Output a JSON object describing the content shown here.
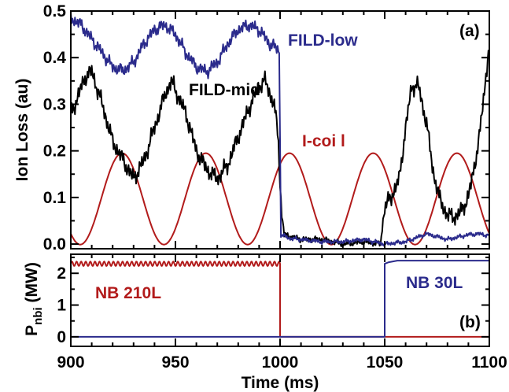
{
  "chart_data": [
    {
      "panel_label": "(a)",
      "type": "line",
      "ylabel": "Ion Loss (au)",
      "xlim": [
        900,
        1100
      ],
      "ylim": [
        -0.01,
        0.5
      ],
      "x_ticks": [
        "900",
        "950",
        "1000",
        "1050",
        "1100"
      ],
      "y_ticks": [
        "0.0",
        "0.1",
        "0.2",
        "0.3",
        "0.4",
        "0.5"
      ],
      "series": [
        {
          "name": "FILD-low",
          "color": "#2b2b8c",
          "x": [
            900,
            905,
            910,
            915,
            920,
            925,
            930,
            935,
            940,
            945,
            950,
            955,
            960,
            965,
            970,
            975,
            980,
            985,
            990,
            995,
            999.8,
            1000.2,
            1005,
            1010,
            1020,
            1030,
            1040,
            1050,
            1060,
            1070,
            1080,
            1090,
            1095,
            1100
          ],
          "y": [
            0.485,
            0.47,
            0.44,
            0.41,
            0.38,
            0.372,
            0.39,
            0.43,
            0.46,
            0.47,
            0.45,
            0.41,
            0.38,
            0.37,
            0.39,
            0.43,
            0.46,
            0.47,
            0.46,
            0.43,
            0.415,
            0.02,
            0.012,
            0.01,
            0.005,
            0.005,
            0.01,
            0.0,
            0.005,
            0.022,
            0.01,
            0.02,
            0.022,
            0.018
          ]
        },
        {
          "name": "FILD-mid",
          "color": "#000000",
          "x": [
            900,
            902,
            907,
            910,
            915,
            920,
            925,
            930,
            935,
            940,
            945,
            948,
            955,
            960,
            965,
            970,
            975,
            980,
            985,
            990,
            993,
            997,
            999,
            1000.5,
            1002,
            1010,
            1020,
            1030,
            1040,
            1048,
            1050,
            1053,
            1057,
            1060,
            1063,
            1066,
            1070,
            1073,
            1076,
            1080,
            1085,
            1090,
            1095,
            1100
          ],
          "y": [
            0.28,
            0.3,
            0.36,
            0.37,
            0.3,
            0.22,
            0.18,
            0.14,
            0.18,
            0.25,
            0.32,
            0.35,
            0.28,
            0.2,
            0.16,
            0.14,
            0.17,
            0.23,
            0.29,
            0.34,
            0.35,
            0.3,
            0.24,
            0.08,
            0.02,
            0.01,
            0.01,
            0.0,
            0.005,
            0.0,
            0.08,
            0.1,
            0.14,
            0.25,
            0.34,
            0.34,
            0.26,
            0.16,
            0.1,
            0.06,
            0.06,
            0.1,
            0.22,
            0.43
          ]
        },
        {
          "name": "I-coil",
          "color": "#b21b1b",
          "phase_ref_x": 924.5,
          "period": 40,
          "amplitude": 0.098,
          "offset": 0.097
        }
      ],
      "annotations": [
        "FILD-low",
        "FILD-mid",
        "I-coi l"
      ]
    },
    {
      "panel_label": "(b)",
      "type": "line",
      "ylabel_main": "P",
      "ylabel_sub": "nbi",
      "ylabel_unit": " (MW)",
      "xlabel": "Time (ms)",
      "xlim": [
        900,
        1100
      ],
      "ylim": [
        -0.3,
        2.6
      ],
      "x_ticks": [
        "900",
        "950",
        "1000",
        "1050",
        "1100"
      ],
      "y_ticks": [
        "0",
        "1",
        "2"
      ],
      "series": [
        {
          "name": "NB 210L",
          "color": "#b21b1b",
          "x": [
            900,
            1000,
            1000,
            1100
          ],
          "y": [
            2.3,
            2.3,
            0.0,
            0.0
          ],
          "ripple": 0.07
        },
        {
          "name": "NB 30L",
          "color": "#2b2b8c",
          "x": [
            900,
            1050,
            1050,
            1052,
            1056,
            1100
          ],
          "y": [
            0.0,
            0.0,
            2.3,
            2.35,
            2.4,
            2.4
          ]
        }
      ],
      "annotations": [
        "NB 210L",
        "NB 30L"
      ]
    }
  ]
}
